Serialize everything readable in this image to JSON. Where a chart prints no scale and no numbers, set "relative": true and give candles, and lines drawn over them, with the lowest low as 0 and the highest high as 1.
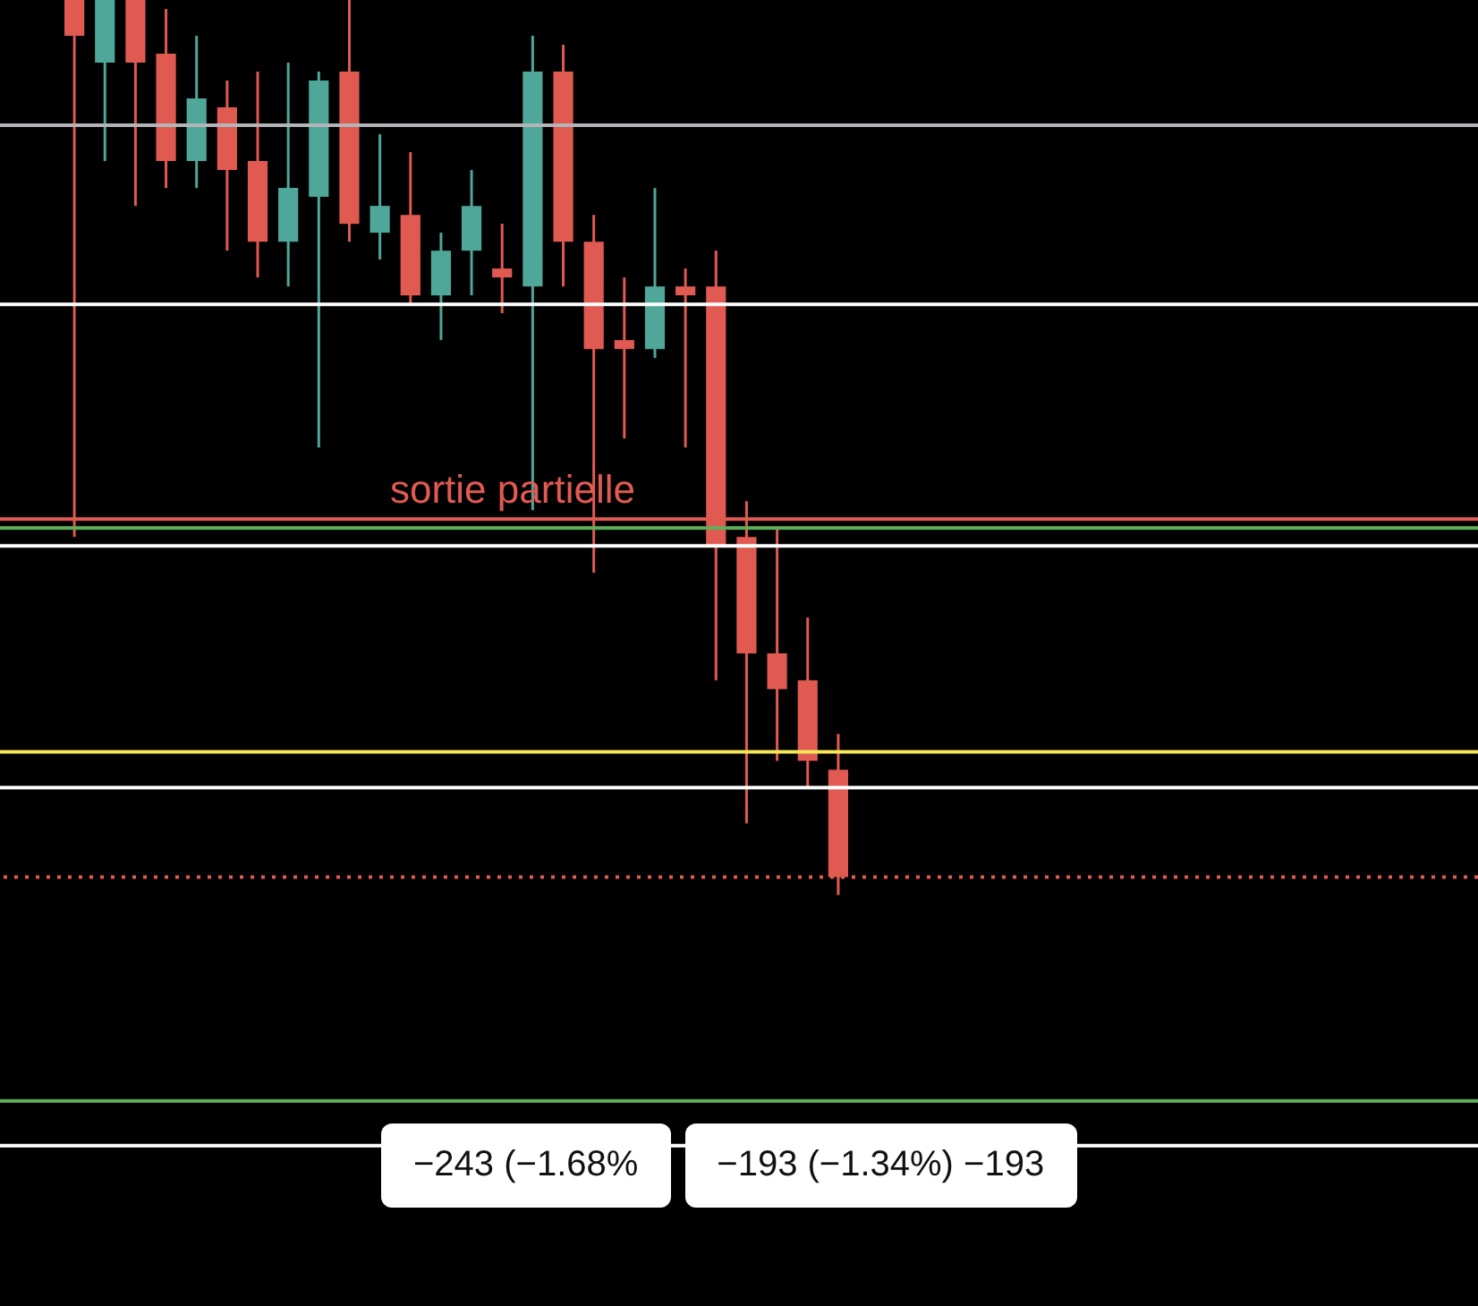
{
  "chart_data": {
    "type": "candlestick",
    "relative": true,
    "categories": [
      null,
      null,
      null,
      null,
      null,
      null,
      null,
      null,
      null,
      null,
      null,
      null,
      null,
      null,
      null,
      null,
      null,
      null,
      null,
      null,
      null,
      null,
      null,
      null,
      null,
      null
    ],
    "ohlc": [
      [
        1,
        1,
        0.4,
        0.96
      ],
      [
        0.93,
        1,
        0.82,
        1
      ],
      [
        1,
        1,
        0.77,
        0.93
      ],
      [
        0.94,
        0.99,
        0.79,
        0.82
      ],
      [
        0.82,
        0.96,
        0.79,
        0.89
      ],
      [
        0.88,
        0.91,
        0.72,
        0.81
      ],
      [
        0.82,
        0.92,
        0.69,
        0.73
      ],
      [
        0.73,
        0.93,
        0.68,
        0.79
      ],
      [
        0.78,
        0.92,
        0.5,
        0.91
      ],
      [
        0.92,
        1,
        0.73,
        0.75
      ],
      [
        0.74,
        0.85,
        0.71,
        0.77
      ],
      [
        0.76,
        0.83,
        0.66,
        0.67
      ],
      [
        0.67,
        0.74,
        0.62,
        0.72
      ],
      [
        0.72,
        0.81,
        0.67,
        0.77
      ],
      [
        0.7,
        0.75,
        0.65,
        0.69
      ],
      [
        0.68,
        0.96,
        0.43,
        0.92
      ],
      [
        0.92,
        0.95,
        0.68,
        0.73
      ],
      [
        0.73,
        0.76,
        0.36,
        0.61
      ],
      [
        0.62,
        0.69,
        0.51,
        0.61
      ],
      [
        0.61,
        0.79,
        0.6,
        0.68
      ],
      [
        0.68,
        0.7,
        0.5,
        0.67
      ],
      [
        0.68,
        0.72,
        0.24,
        0.39
      ],
      [
        0.4,
        0.44,
        0.08,
        0.27
      ],
      [
        0.27,
        0.41,
        0.15,
        0.23
      ],
      [
        0.24,
        0.31,
        0.12,
        0.15
      ],
      [
        0.14,
        0.18,
        0,
        0.02
      ]
    ],
    "colors": [
      "#e05a52",
      "#4fa79a",
      "#e05a52",
      "#e05a52",
      "#4fa79a",
      "#e05a52",
      "#e05a52",
      "#4fa79a",
      "#4fa79a",
      "#e05a52",
      "#4fa79a",
      "#e05a52",
      "#4fa79a",
      "#4fa79a",
      "#e05a52",
      "#4fa79a",
      "#e05a52",
      "#e05a52",
      "#e05a52",
      "#4fa79a",
      "#e05a52",
      "#e05a52",
      "#e05a52",
      "#e05a52",
      "#e05a52",
      "#e05a52"
    ],
    "ref_lines": [
      {
        "axis": "y",
        "value": 0.86,
        "color": "#b4b4b8"
      },
      {
        "axis": "y",
        "value": 0.66,
        "color": "#ffffff"
      },
      {
        "axis": "y",
        "value": 0.42,
        "color": "#e05a52",
        "label": "sortie partielle"
      },
      {
        "axis": "y",
        "value": 0.41,
        "color": "#5fae5a"
      },
      {
        "axis": "y",
        "value": 0.39,
        "color": "#ffffff"
      },
      {
        "axis": "y",
        "value": 0.16,
        "color": "#f5e65a"
      },
      {
        "axis": "y",
        "value": 0.12,
        "color": "#ffffff"
      },
      {
        "axis": "y",
        "value": 0.02,
        "color": "#e05a52",
        "line_style": "dotted"
      },
      {
        "axis": "y",
        "value": -0.23,
        "color": "#5fae5a"
      },
      {
        "axis": "y",
        "value": -0.28,
        "color": "#ffffff"
      }
    ],
    "annotations": [
      "−243 (−1.68%",
      "−193 (−1.34%) −193"
    ]
  }
}
